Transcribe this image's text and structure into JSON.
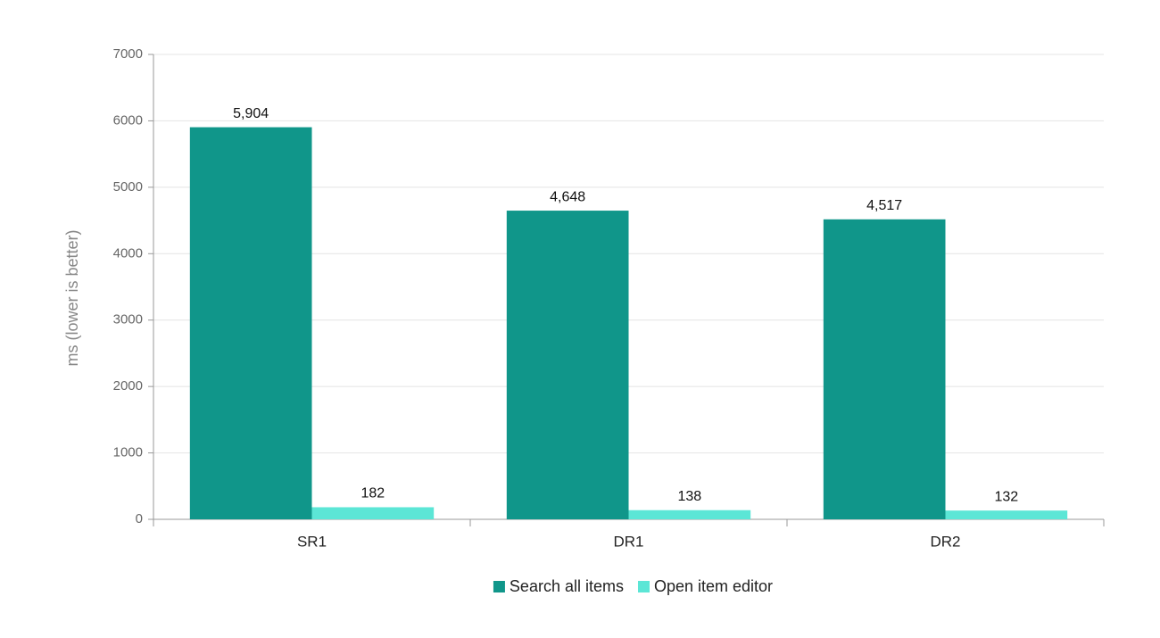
{
  "chart_data": {
    "type": "bar",
    "y_label": "ms (lower is better)",
    "categories": [
      "SR1",
      "DR1",
      "DR2"
    ],
    "series": [
      {
        "name": "Search all items",
        "color": "#10968a",
        "values": [
          5904,
          4648,
          4517
        ],
        "value_labels": [
          "5,904",
          "4,648",
          "4,517"
        ]
      },
      {
        "name": "Open item editor",
        "color": "#5ce6d6",
        "values": [
          182,
          138,
          132
        ]
      }
    ],
    "ylim": [
      0,
      7000
    ],
    "yticks": [
      0,
      1000,
      2000,
      3000,
      4000,
      5000,
      6000,
      7000
    ],
    "grid": true,
    "legend": "bottom"
  }
}
